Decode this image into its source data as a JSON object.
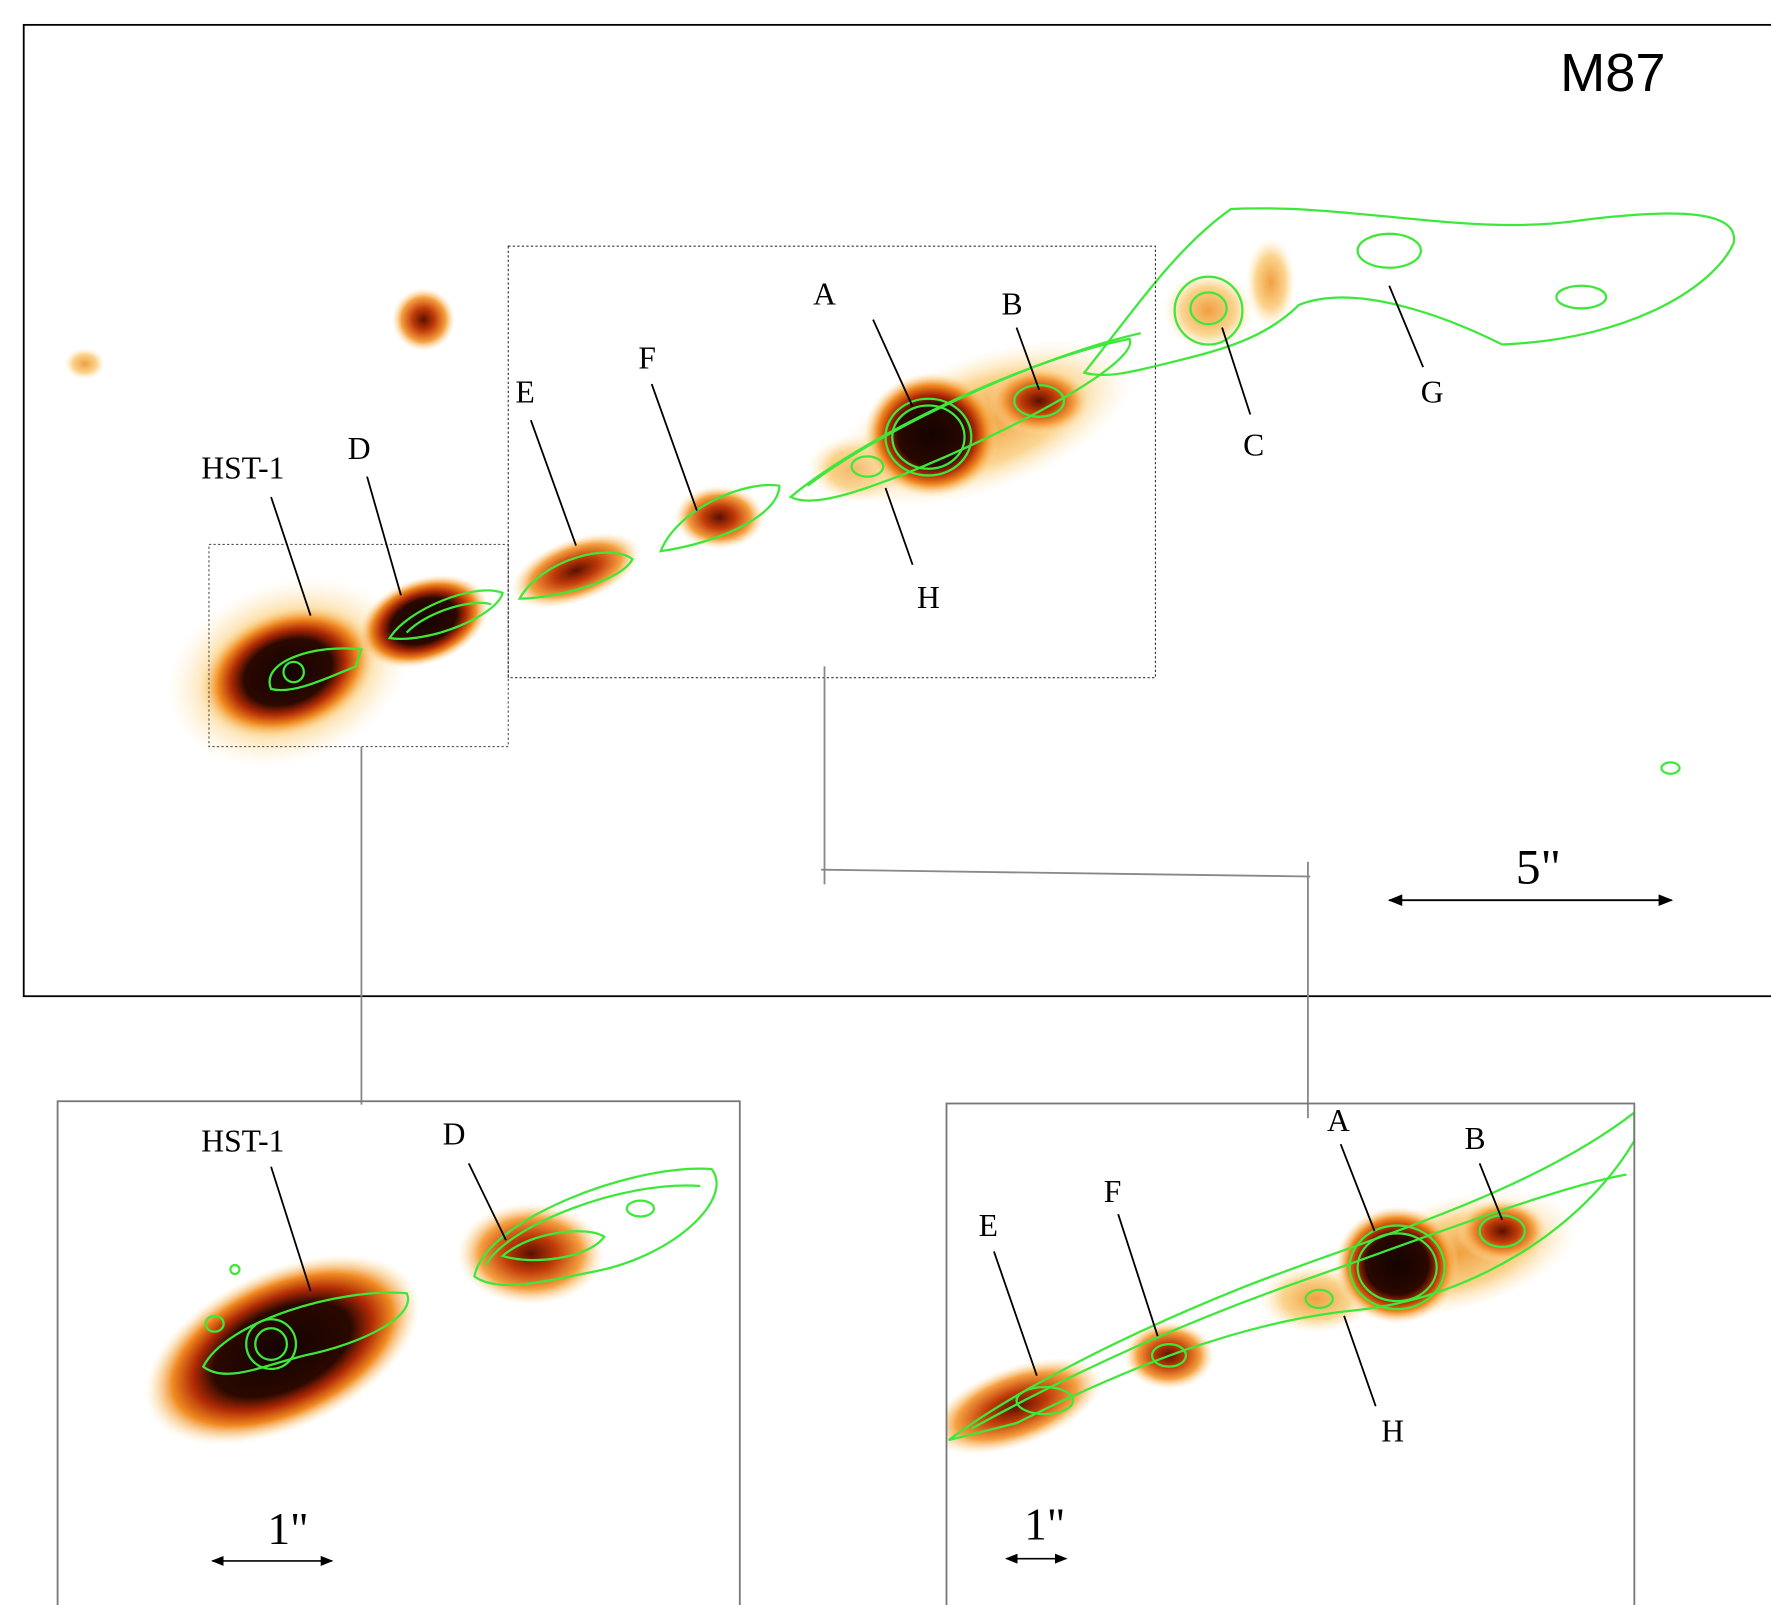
{
  "main": {
    "title": "M87",
    "labels": [
      "HST-1",
      "D",
      "E",
      "F",
      "A",
      "B",
      "C",
      "G",
      "H"
    ],
    "scale": "5\""
  },
  "inset_left": {
    "labels": [
      "HST-1",
      "D"
    ],
    "scale": "1\""
  },
  "inset_right": {
    "labels": [
      "E",
      "F",
      "A",
      "B",
      "H"
    ],
    "scale": "1\""
  }
}
